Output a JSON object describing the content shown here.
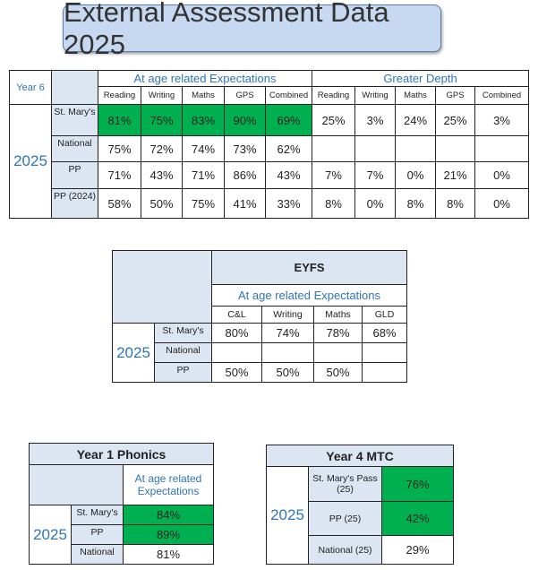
{
  "title": "External Assessment Data 2025",
  "year6": {
    "label": "Year 6",
    "year": "2025",
    "are": "At age related Expectations",
    "gd": "Greater Depth",
    "cols": [
      "Reading",
      "Writing",
      "Maths",
      "GPS",
      "Combined",
      "Reading",
      "Writing",
      "Maths",
      "GPS",
      "Combined"
    ],
    "rows": [
      {
        "label": "St. Mary's",
        "values": [
          "81%",
          "75%",
          "83%",
          "90%",
          "69%",
          "25%",
          "3%",
          "24%",
          "25%",
          "3%"
        ]
      },
      {
        "label": "National",
        "values": [
          "75%",
          "72%",
          "74%",
          "73%",
          "62%",
          "",
          "",
          "",
          "",
          ""
        ]
      },
      {
        "label": "PP",
        "values": [
          "71%",
          "43%",
          "71%",
          "86%",
          "43%",
          "7%",
          "7%",
          "0%",
          "21%",
          "0%"
        ]
      },
      {
        "label": "PP (2024)",
        "values": [
          "58%",
          "50%",
          "75%",
          "41%",
          "33%",
          "8%",
          "0%",
          "8%",
          "8%",
          "0%"
        ]
      }
    ]
  },
  "eyfs": {
    "title": "EYFS",
    "are": "At age related Expectations",
    "year": "2025",
    "cols": [
      "C&L",
      "Writing",
      "Maths",
      "GLD"
    ],
    "rows": [
      {
        "label": "St. Mary's",
        "values": [
          "80%",
          "74%",
          "78%",
          "68%"
        ]
      },
      {
        "label": "National",
        "values": [
          "",
          "",
          "",
          ""
        ]
      },
      {
        "label": "PP",
        "values": [
          "50%",
          "50%",
          "50%",
          ""
        ]
      }
    ]
  },
  "phonics": {
    "title": "Year 1 Phonics",
    "are": "At age related Expectations",
    "year": "2025",
    "rows": [
      {
        "label": "St. Mary's",
        "value": "84%"
      },
      {
        "label": "PP",
        "value": "89%"
      },
      {
        "label": "National",
        "value": "81%"
      }
    ]
  },
  "mtc": {
    "title": "Year 4 MTC",
    "year": "2025",
    "rows": [
      {
        "label": "St. Mary's Pass (25)",
        "value": "76%"
      },
      {
        "label": "PP (25)",
        "value": "42%"
      },
      {
        "label": "National (25)",
        "value": "29%"
      }
    ]
  },
  "colors": {
    "highlight": "#00b050",
    "header_bg": "#dce6f2",
    "accent": "#2e75b6"
  }
}
